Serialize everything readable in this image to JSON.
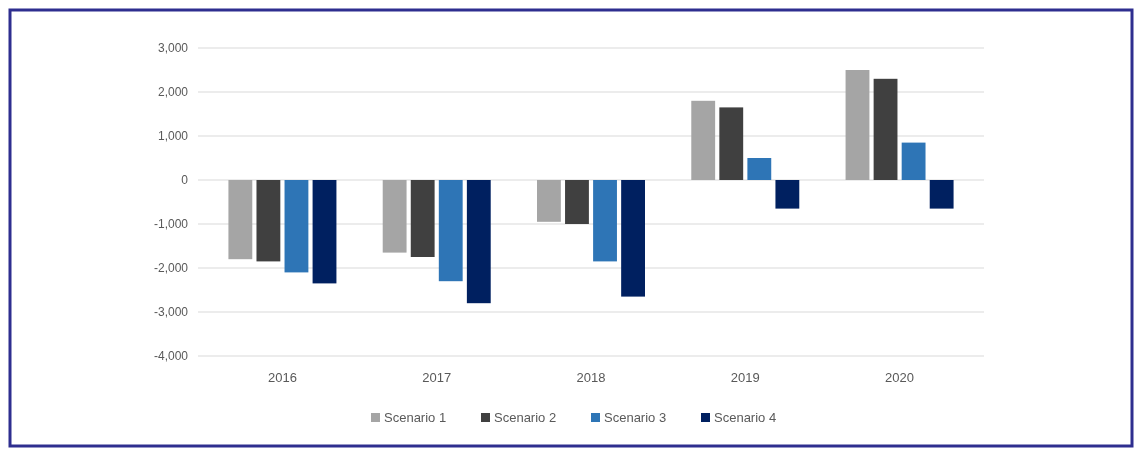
{
  "chart_data": {
    "type": "bar",
    "categories": [
      "2016",
      "2017",
      "2018",
      "2019",
      "2020"
    ],
    "series": [
      {
        "name": "Scenario 1",
        "color": "#a5a5a5",
        "values": [
          -1800,
          -1650,
          -950,
          1800,
          2500
        ]
      },
      {
        "name": "Scenario 2",
        "color": "#404040",
        "values": [
          -1850,
          -1750,
          -1000,
          1650,
          2300
        ]
      },
      {
        "name": "Scenario 3",
        "color": "#2e75b6",
        "values": [
          -2100,
          -2300,
          -1850,
          500,
          850
        ]
      },
      {
        "name": "Scenario 4",
        "color": "#002060",
        "values": [
          -2350,
          -2800,
          -2650,
          -650,
          -650
        ]
      }
    ],
    "ylim": [
      -4000,
      3000
    ],
    "yticks": [
      {
        "value": -4000,
        "label": "-4,000"
      },
      {
        "value": -3000,
        "label": "-3,000"
      },
      {
        "value": -2000,
        "label": "-2,000"
      },
      {
        "value": -1000,
        "label": "-1,000"
      },
      0,
      {
        "value": 1000,
        "label": "1,000"
      },
      {
        "value": 2000,
        "label": "2,000"
      },
      {
        "value": 3000,
        "label": "3,000"
      }
    ],
    "grid": "y",
    "legend": "bottom"
  }
}
